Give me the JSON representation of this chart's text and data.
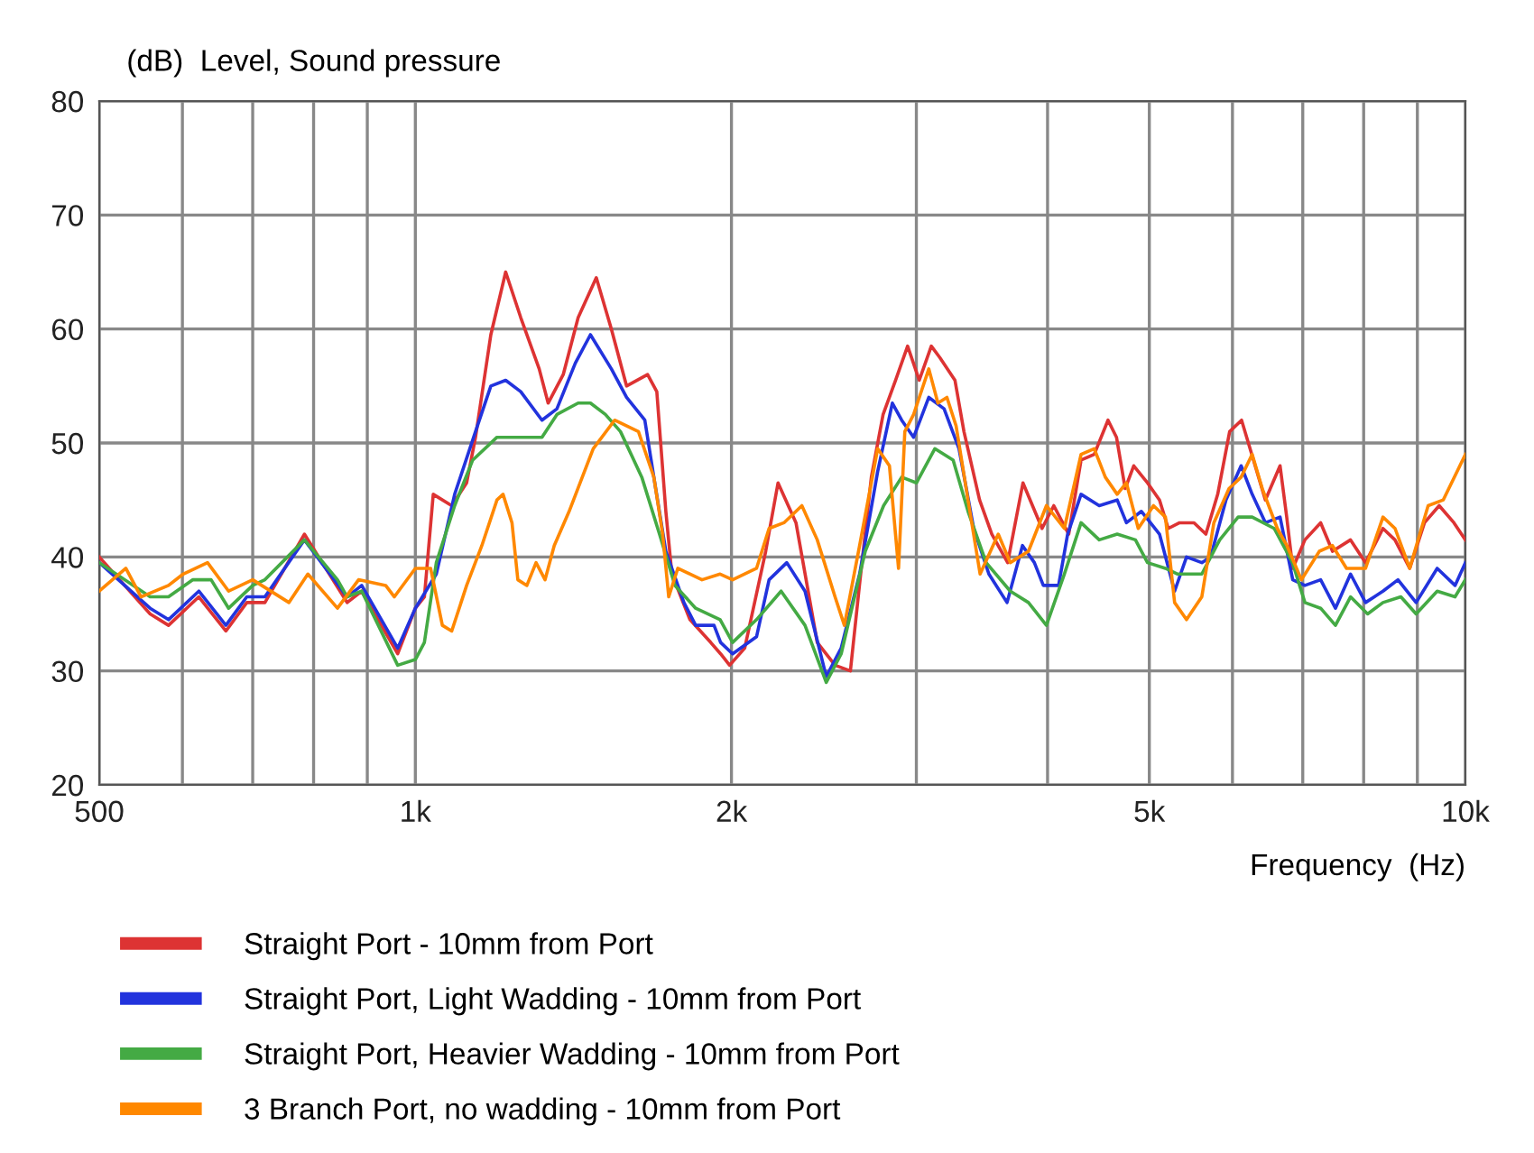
{
  "chart_data": {
    "type": "line",
    "ylabel": "(dB)  Level, Sound pressure",
    "xlabel": "Frequency  (Hz)",
    "log": "x",
    "xlim": [
      500,
      10000
    ],
    "ylim": [
      20,
      80
    ],
    "yticks": [
      20,
      30,
      40,
      50,
      60,
      70,
      80
    ],
    "xticks": [
      {
        "value": 500,
        "label": "500"
      },
      {
        "value": 600,
        "label": null
      },
      {
        "value": 700,
        "label": null
      },
      {
        "value": 800,
        "label": null
      },
      {
        "value": 900,
        "label": null
      },
      {
        "value": 1000,
        "label": "1k"
      },
      {
        "value": 2000,
        "label": "2k"
      },
      {
        "value": 3000,
        "label": null
      },
      {
        "value": 4000,
        "label": null
      },
      {
        "value": 5000,
        "label": "5k"
      },
      {
        "value": 6000,
        "label": null
      },
      {
        "value": 7000,
        "label": null
      },
      {
        "value": 8000,
        "label": null
      },
      {
        "value": 9000,
        "label": null
      },
      {
        "value": 10000,
        "label": "10k"
      }
    ],
    "grid": true,
    "legend": "bottom",
    "marker": "none",
    "line_style": "solid",
    "series": [
      {
        "name": "Straight Port - 10mm from Port",
        "color": "#dd3333",
        "x": [
          500,
          559,
          582,
          622,
          660,
          691,
          719,
          784,
          861,
          889,
          962,
          1000,
          1020,
          1040,
          1083,
          1119,
          1141,
          1180,
          1219,
          1260,
          1312,
          1338,
          1383,
          1429,
          1487,
          1537,
          1589,
          1664,
          1698,
          1732,
          1755,
          1826,
          1911,
          1953,
          1992,
          2059,
          2156,
          2215,
          2304,
          2414,
          2510,
          2596,
          2648,
          2718,
          2789,
          2866,
          2943,
          3019,
          3100,
          3158,
          3265,
          3330,
          3446,
          3540,
          3665,
          3790,
          3952,
          4055,
          4190,
          4305,
          4431,
          4567,
          4653,
          4742,
          4832,
          4980,
          5113,
          5212,
          5343,
          5515,
          5660,
          5809,
          5963,
          6121,
          6283,
          6449,
          6660,
          6758,
          6848,
          7033,
          7280,
          7472,
          7773,
          8033,
          8346,
          8568,
          8850,
          9141,
          9441,
          9751,
          10000
        ],
        "values": [
          40,
          35,
          34,
          36.5,
          33.5,
          36,
          36,
          42,
          36,
          37,
          31.5,
          35.5,
          36.5,
          45.5,
          44.5,
          46.5,
          50.5,
          59.5,
          65,
          61,
          56.5,
          53.5,
          56,
          61,
          64.5,
          60,
          55,
          56,
          54.5,
          44,
          38.5,
          34.5,
          32.5,
          31.5,
          30.5,
          32,
          40.5,
          46.5,
          43,
          32.5,
          30.5,
          30,
          37.5,
          47,
          52.5,
          55.5,
          58.5,
          55.5,
          58.5,
          57.5,
          55.5,
          51,
          45,
          42,
          39.5,
          46.5,
          42.5,
          44.5,
          42,
          48.5,
          49,
          52,
          50.5,
          46,
          48,
          46.5,
          45,
          42.5,
          43,
          43,
          42,
          45.5,
          51,
          52,
          48.5,
          45,
          48,
          43.5,
          39,
          41.5,
          43,
          40.5,
          41.5,
          39.5,
          42.5,
          41.5,
          39,
          43,
          44.5,
          43,
          41.5
        ]
      },
      {
        "name": "Straight Port, Light Wadding - 10mm from Port",
        "color": "#2233dd",
        "x": [
          500,
          559,
          582,
          622,
          660,
          691,
          719,
          784,
          861,
          889,
          962,
          1000,
          1047,
          1090,
          1141,
          1180,
          1219,
          1260,
          1320,
          1364,
          1420,
          1468,
          1537,
          1589,
          1654,
          1687,
          1732,
          1802,
          1849,
          1925,
          1953,
          2005,
          2113,
          2172,
          2258,
          2350,
          2462,
          2544,
          2649,
          2756,
          2846,
          2905,
          2982,
          3083,
          3188,
          3294,
          3402,
          3517,
          3660,
          3786,
          3886,
          3963,
          4098,
          4180,
          4305,
          4480,
          4660,
          4755,
          4914,
          5113,
          5285,
          5425,
          5610,
          5720,
          5915,
          6115,
          6265,
          6450,
          6660,
          6848,
          7033,
          7280,
          7520,
          7773,
          8033,
          8346,
          8625,
          8975,
          9400,
          9775,
          10000
        ],
        "values": [
          39.5,
          35.5,
          34.5,
          37,
          34,
          36.5,
          36.5,
          41.5,
          36.5,
          37.5,
          32,
          35.5,
          38.5,
          45.5,
          51,
          55,
          55.5,
          54.5,
          52,
          53,
          57,
          59.5,
          56.5,
          54,
          52,
          47,
          40.5,
          36,
          34,
          34,
          32.5,
          31.5,
          33,
          38,
          39.5,
          37,
          29.5,
          32,
          38.5,
          47.5,
          53.5,
          52,
          50.5,
          54,
          53,
          49.5,
          42.5,
          38.5,
          36,
          41,
          39.5,
          37.5,
          37.5,
          42,
          45.5,
          44.5,
          45,
          43,
          44,
          42,
          37,
          40,
          39.5,
          40,
          45,
          48,
          45.5,
          43,
          43.5,
          38,
          37.5,
          38,
          35.5,
          38.5,
          36,
          37,
          38,
          36,
          39,
          37.5,
          39.5
        ]
      },
      {
        "name": "Straight Port, Heavier Wadding - 10mm from Port",
        "color": "#44aa44",
        "x": [
          500,
          559,
          582,
          614,
          639,
          664,
          700,
          719,
          784,
          843,
          861,
          889,
          962,
          1000,
          1020,
          1047,
          1090,
          1134,
          1196,
          1320,
          1364,
          1429,
          1468,
          1517,
          1568,
          1643,
          1708,
          1767,
          1849,
          1951,
          2005,
          2113,
          2230,
          2350,
          2462,
          2544,
          2682,
          2792,
          2905,
          3001,
          3124,
          3252,
          3360,
          3496,
          3686,
          3836,
          3990,
          4150,
          4305,
          4480,
          4660,
          4850,
          4980,
          5180,
          5320,
          5610,
          5835,
          6075,
          6265,
          6575,
          6845,
          7033,
          7280,
          7520,
          7773,
          8070,
          8346,
          8680,
          8975,
          9400,
          9775,
          10000
        ],
        "values": [
          39.5,
          36.5,
          36.5,
          38,
          38,
          35.5,
          37.5,
          38,
          41.5,
          38,
          36.5,
          37,
          30.5,
          31,
          32.5,
          39.5,
          44.5,
          48.5,
          50.5,
          50.5,
          52.5,
          53.5,
          53.5,
          52.5,
          51,
          47,
          42,
          37.5,
          35.5,
          34.5,
          32.5,
          34.5,
          37,
          34,
          29,
          31.5,
          40.5,
          44.5,
          47,
          46.5,
          49.5,
          48.5,
          44,
          39.5,
          37,
          36,
          34,
          38.5,
          43,
          41.5,
          42,
          41.5,
          39.5,
          39,
          38.5,
          38.5,
          41.5,
          43.5,
          43.5,
          42.5,
          39.5,
          36,
          35.5,
          34,
          36.5,
          35,
          36,
          36.5,
          35,
          37,
          36.5,
          38
        ]
      },
      {
        "name": "3 Branch Port, no wadding - 10mm from Port",
        "color": "#ff8800",
        "x": [
          500,
          530,
          548,
          582,
          601,
          634,
          664,
          700,
          758,
          790,
          843,
          883,
          937,
          955,
          1000,
          1034,
          1061,
          1083,
          1119,
          1157,
          1196,
          1212,
          1236,
          1252,
          1277,
          1303,
          1329,
          1356,
          1401,
          1477,
          1548,
          1631,
          1687,
          1720,
          1743,
          1778,
          1875,
          1951,
          2005,
          2113,
          2172,
          2244,
          2334,
          2414,
          2510,
          2562,
          2649,
          2756,
          2828,
          2885,
          2925,
          2982,
          3083,
          3145,
          3208,
          3273,
          3360,
          3450,
          3590,
          3686,
          3836,
          3990,
          4150,
          4305,
          4431,
          4540,
          4660,
          4755,
          4880,
          5046,
          5180,
          5285,
          5425,
          5610,
          5760,
          5955,
          6115,
          6265,
          6405,
          6620,
          6760,
          6980,
          7260,
          7470,
          7705,
          8033,
          8346,
          8570,
          8850,
          9215,
          9525,
          10000
        ],
        "values": [
          37,
          39,
          36.5,
          37.5,
          38.5,
          39.5,
          37,
          38,
          36,
          38.5,
          35.5,
          38,
          37.5,
          36.5,
          39,
          39,
          34,
          33.5,
          37.5,
          41,
          45,
          45.5,
          43,
          38,
          37.5,
          39.5,
          38,
          41,
          44,
          49.5,
          52,
          51,
          47,
          42,
          36.5,
          39,
          38,
          38.5,
          38,
          39,
          42.5,
          43,
          44.5,
          41.5,
          36.5,
          34,
          41,
          49.5,
          48,
          39,
          51,
          52.5,
          56.5,
          53.5,
          54,
          51.5,
          45,
          38.5,
          42,
          39.5,
          40.5,
          44.5,
          42.5,
          49,
          49.5,
          47,
          45.5,
          46.5,
          42.5,
          44.5,
          43.5,
          36,
          34.5,
          36.5,
          43,
          46,
          47,
          49,
          46,
          42.5,
          41,
          38,
          40.5,
          41,
          39,
          39,
          43.5,
          42.5,
          39,
          44.5,
          45,
          49
        ]
      }
    ]
  }
}
